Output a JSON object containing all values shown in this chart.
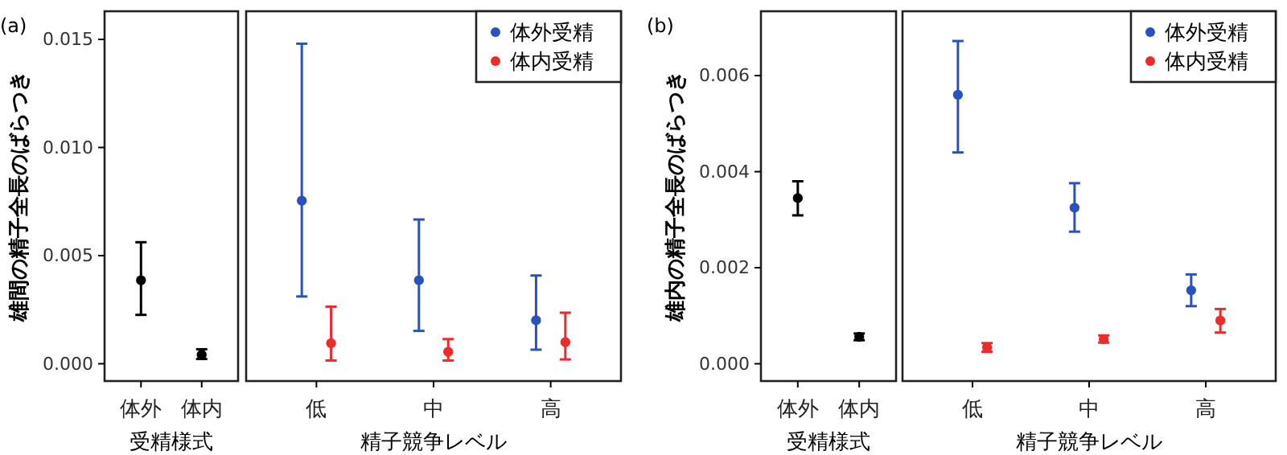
{
  "chart_data": [
    {
      "type": "scatter",
      "title": "(a)",
      "ylabel": "雄間の精子全長のばらつき",
      "xlabel": "受精様式",
      "categories": [
        "体外",
        "体内"
      ],
      "marker": "circle",
      "ylim": [
        -0.0008,
        0.0163
      ],
      "yticks": [
        {
          "value": 0,
          "label": "0.000"
        },
        {
          "value": 0.005,
          "label": "0.005"
        },
        {
          "value": 0.01,
          "label": "0.010"
        },
        {
          "value": 0.015,
          "label": "0.015"
        }
      ],
      "series": [
        {
          "color": "#000000",
          "values": [
            0.00386,
            0.00042
          ],
          "errors": [
            [
              0.00226,
              0.00562
            ],
            [
              0.00022,
              0.00067
            ]
          ]
        }
      ]
    },
    {
      "type": "scatter",
      "xlabel": "精子競争レベル",
      "categories": [
        "低",
        "中",
        "高"
      ],
      "marker": "circle",
      "ylim": [
        -0.0008,
        0.0163
      ],
      "tick_labels": "x",
      "legend": "top right",
      "series": [
        {
          "name": "体外受精",
          "color": "#2a52be",
          "values": [
            0.00754,
            0.00386,
            0.00201
          ],
          "errors": [
            [
              0.00311,
              0.0148
            ],
            [
              0.00152,
              0.00667
            ],
            [
              0.00065,
              0.00408
            ]
          ]
        },
        {
          "name": "体内受精",
          "color": "#ee2a2a",
          "values": [
            0.00095,
            0.00055,
            0.001
          ],
          "errors": [
            [
              0.00015,
              0.00264
            ],
            [
              0.00015,
              0.00114
            ],
            [
              0.0002,
              0.00236
            ]
          ]
        }
      ]
    },
    {
      "type": "scatter",
      "title": "(b)",
      "ylabel": "雄内の精子全長のばらつき",
      "xlabel": "受精様式",
      "categories": [
        "体外",
        "体内"
      ],
      "marker": "circle",
      "ylim": [
        -0.00036,
        0.00734
      ],
      "yticks": [
        {
          "value": 0,
          "label": "0.000"
        },
        {
          "value": 0.002,
          "label": "0.002"
        },
        {
          "value": 0.004,
          "label": "0.004"
        },
        {
          "value": 0.006,
          "label": "0.006"
        }
      ],
      "series": [
        {
          "color": "#000000",
          "values": [
            0.00345,
            0.00056
          ],
          "errors": [
            [
              0.00309,
              0.0038
            ],
            [
              0.00049,
              0.00063
            ]
          ]
        }
      ]
    },
    {
      "type": "scatter",
      "xlabel": "精子競争レベル",
      "categories": [
        "低",
        "中",
        "高"
      ],
      "marker": "circle",
      "ylim": [
        -0.00036,
        0.00734
      ],
      "tick_labels": "x",
      "legend": "top right",
      "series": [
        {
          "name": "体外受精",
          "color": "#2a52be",
          "values": [
            0.0056,
            0.00325,
            0.00153
          ],
          "errors": [
            [
              0.0044,
              0.00672
            ],
            [
              0.00275,
              0.00376
            ],
            [
              0.0012,
              0.00186
            ]
          ]
        },
        {
          "name": "体内受精",
          "color": "#ee2a2a",
          "values": [
            0.00034,
            0.00051,
            0.0009
          ],
          "errors": [
            [
              0.00025,
              0.00043
            ],
            [
              0.00044,
              0.00059
            ],
            [
              0.00065,
              0.00114
            ]
          ]
        }
      ]
    }
  ]
}
